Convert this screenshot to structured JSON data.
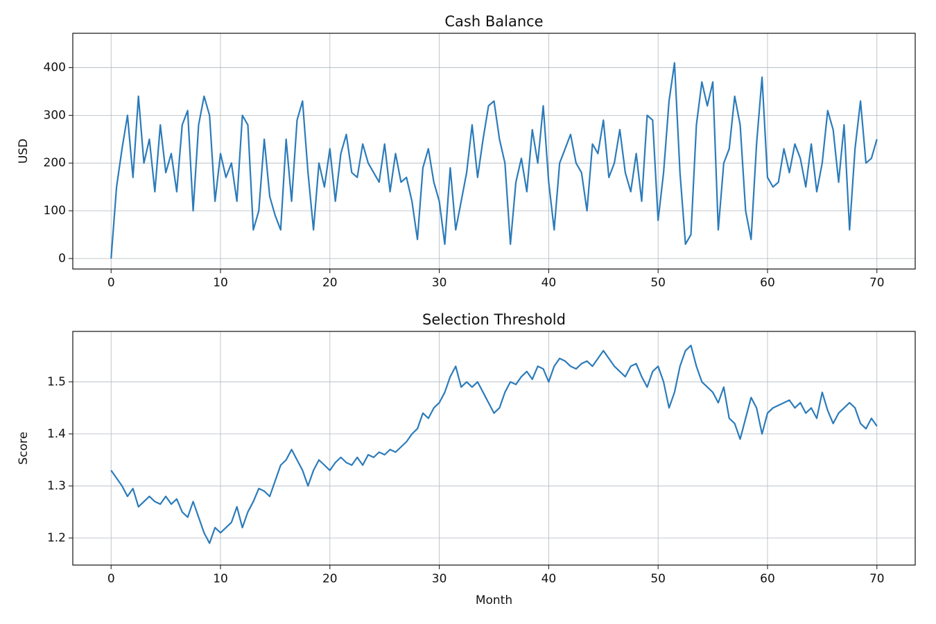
{
  "chart_data": [
    {
      "type": "line",
      "title": "Cash Balance",
      "ylabel": "USD",
      "color": "#2b7bba",
      "grid": true,
      "xlim": [
        -3.5,
        73.5
      ],
      "ylim": [
        -22,
        472
      ],
      "xticks": [
        0,
        10,
        20,
        30,
        40,
        50,
        60,
        70
      ],
      "yticks": [
        0,
        100,
        200,
        300,
        400
      ],
      "x": [
        0,
        0.5,
        1,
        1.5,
        2,
        2.5,
        3,
        3.5,
        4,
        4.5,
        5,
        5.5,
        6,
        6.5,
        7,
        7.5,
        8,
        8.5,
        9,
        9.5,
        10,
        10.5,
        11,
        11.5,
        12,
        12.5,
        13,
        13.5,
        14,
        14.5,
        15,
        15.5,
        16,
        16.5,
        17,
        17.5,
        18,
        18.5,
        19,
        19.5,
        20,
        20.5,
        21,
        21.5,
        22,
        22.5,
        23,
        23.5,
        24,
        24.5,
        25,
        25.5,
        26,
        26.5,
        27,
        27.5,
        28,
        28.5,
        29,
        29.5,
        30,
        30.5,
        31,
        31.5,
        32,
        32.5,
        33,
        33.5,
        34,
        34.5,
        35,
        35.5,
        36,
        36.5,
        37,
        37.5,
        38,
        38.5,
        39,
        39.5,
        40,
        40.5,
        41,
        41.5,
        42,
        42.5,
        43,
        43.5,
        44,
        44.5,
        45,
        45.5,
        46,
        46.5,
        47,
        47.5,
        48,
        48.5,
        49,
        49.5,
        50,
        50.5,
        51,
        51.5,
        52,
        52.5,
        53,
        53.5,
        54,
        54.5,
        55,
        55.5,
        56,
        56.5,
        57,
        57.5,
        58,
        58.5,
        59,
        59.5,
        60,
        60.5,
        61,
        61.5,
        62,
        62.5,
        63,
        63.5,
        64,
        64.5,
        65,
        65.5,
        66,
        66.5,
        67,
        67.5,
        68,
        68.5,
        69,
        69.5,
        70
      ],
      "values": [
        0,
        150,
        230,
        300,
        170,
        340,
        200,
        250,
        140,
        280,
        180,
        220,
        140,
        280,
        310,
        100,
        280,
        340,
        300,
        120,
        220,
        170,
        200,
        120,
        300,
        280,
        60,
        100,
        250,
        130,
        90,
        60,
        250,
        120,
        290,
        330,
        180,
        60,
        200,
        150,
        230,
        120,
        220,
        260,
        180,
        170,
        240,
        200,
        180,
        160,
        240,
        140,
        220,
        160,
        170,
        120,
        40,
        190,
        230,
        160,
        120,
        30,
        190,
        60,
        120,
        180,
        280,
        170,
        250,
        320,
        330,
        250,
        200,
        30,
        160,
        210,
        140,
        270,
        200,
        320,
        160,
        60,
        200,
        230,
        260,
        200,
        180,
        100,
        240,
        220,
        290,
        170,
        200,
        270,
        180,
        140,
        220,
        120,
        300,
        290,
        80,
        180,
        330,
        410,
        180,
        30,
        50,
        280,
        370,
        320,
        370,
        60,
        200,
        230,
        340,
        280,
        100,
        40,
        240,
        380,
        170,
        150,
        160,
        230,
        180,
        240,
        210,
        150,
        240,
        140,
        200,
        310,
        270,
        160,
        280,
        60,
        230,
        330,
        200,
        210,
        250
      ]
    },
    {
      "type": "line",
      "title": "Selection Threshold",
      "ylabel": "Score",
      "xlabel": "Month",
      "color": "#2b7bba",
      "grid": true,
      "xlim": [
        -3.5,
        73.5
      ],
      "ylim": [
        1.148,
        1.597
      ],
      "xticks": [
        0,
        10,
        20,
        30,
        40,
        50,
        60,
        70
      ],
      "yticks": [
        1.2,
        1.3,
        1.4,
        1.5
      ],
      "x": [
        0,
        0.5,
        1,
        1.5,
        2,
        2.5,
        3,
        3.5,
        4,
        4.5,
        5,
        5.5,
        6,
        6.5,
        7,
        7.5,
        8,
        8.5,
        9,
        9.5,
        10,
        10.5,
        11,
        11.5,
        12,
        12.5,
        13,
        13.5,
        14,
        14.5,
        15,
        15.5,
        16,
        16.5,
        17,
        17.5,
        18,
        18.5,
        19,
        19.5,
        20,
        20.5,
        21,
        21.5,
        22,
        22.5,
        23,
        23.5,
        24,
        24.5,
        25,
        25.5,
        26,
        26.5,
        27,
        27.5,
        28,
        28.5,
        29,
        29.5,
        30,
        30.5,
        31,
        31.5,
        32,
        32.5,
        33,
        33.5,
        34,
        34.5,
        35,
        35.5,
        36,
        36.5,
        37,
        37.5,
        38,
        38.5,
        39,
        39.5,
        40,
        40.5,
        41,
        41.5,
        42,
        42.5,
        43,
        43.5,
        44,
        44.5,
        45,
        45.5,
        46,
        46.5,
        47,
        47.5,
        48,
        48.5,
        49,
        49.5,
        50,
        50.5,
        51,
        51.5,
        52,
        52.5,
        53,
        53.5,
        54,
        54.5,
        55,
        55.5,
        56,
        56.5,
        57,
        57.5,
        58,
        58.5,
        59,
        59.5,
        60,
        60.5,
        61,
        61.5,
        62,
        62.5,
        63,
        63.5,
        64,
        64.5,
        65,
        65.5,
        66,
        66.5,
        67,
        67.5,
        68,
        68.5,
        69,
        69.5,
        70
      ],
      "values": [
        1.33,
        1.315,
        1.3,
        1.28,
        1.295,
        1.26,
        1.27,
        1.28,
        1.27,
        1.265,
        1.28,
        1.265,
        1.275,
        1.25,
        1.24,
        1.27,
        1.24,
        1.21,
        1.19,
        1.22,
        1.21,
        1.22,
        1.23,
        1.26,
        1.22,
        1.25,
        1.27,
        1.295,
        1.29,
        1.28,
        1.31,
        1.34,
        1.35,
        1.37,
        1.35,
        1.33,
        1.3,
        1.33,
        1.35,
        1.34,
        1.33,
        1.345,
        1.355,
        1.345,
        1.34,
        1.355,
        1.34,
        1.36,
        1.355,
        1.365,
        1.36,
        1.37,
        1.365,
        1.375,
        1.385,
        1.4,
        1.41,
        1.44,
        1.43,
        1.45,
        1.46,
        1.48,
        1.51,
        1.53,
        1.49,
        1.5,
        1.49,
        1.5,
        1.48,
        1.46,
        1.44,
        1.45,
        1.48,
        1.5,
        1.495,
        1.51,
        1.52,
        1.505,
        1.53,
        1.525,
        1.5,
        1.53,
        1.545,
        1.54,
        1.53,
        1.525,
        1.535,
        1.54,
        1.53,
        1.545,
        1.56,
        1.545,
        1.53,
        1.52,
        1.51,
        1.53,
        1.535,
        1.51,
        1.49,
        1.52,
        1.53,
        1.5,
        1.45,
        1.48,
        1.53,
        1.56,
        1.57,
        1.53,
        1.5,
        1.49,
        1.48,
        1.46,
        1.49,
        1.43,
        1.42,
        1.39,
        1.43,
        1.47,
        1.45,
        1.4,
        1.44,
        1.45,
        1.455,
        1.46,
        1.465,
        1.45,
        1.46,
        1.44,
        1.45,
        1.43,
        1.48,
        1.445,
        1.42,
        1.44,
        1.45,
        1.46,
        1.45,
        1.42,
        1.41,
        1.43,
        1.415
      ]
    }
  ]
}
